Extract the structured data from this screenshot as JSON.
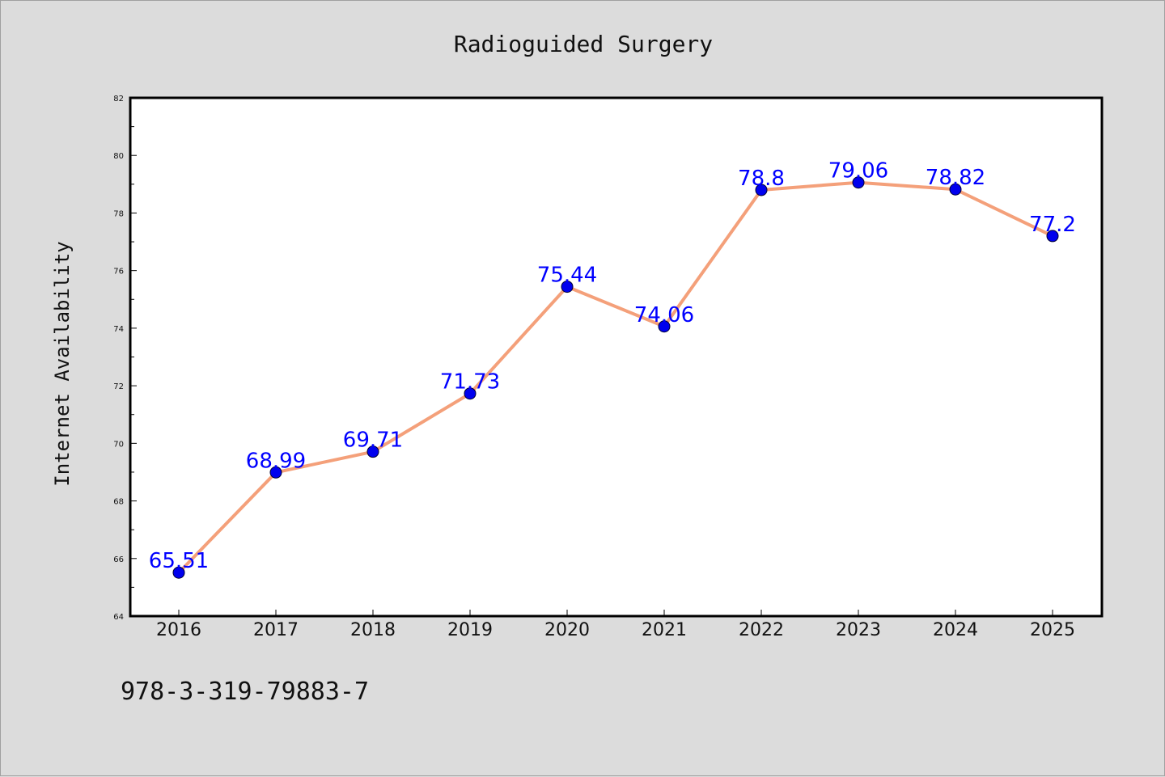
{
  "chart_data": {
    "type": "line",
    "title": "Radioguided Surgery",
    "xlabel": "",
    "ylabel": "Internet Availability",
    "x": [
      "2016",
      "2017",
      "2018",
      "2019",
      "2020",
      "2021",
      "2022",
      "2023",
      "2024",
      "2025"
    ],
    "series": [
      {
        "values": [
          65.51,
          68.99,
          69.71,
          71.73,
          75.44,
          74.06,
          78.8,
          79.06,
          78.82,
          77.2
        ],
        "line_color": "#f4a07a",
        "marker_color": "#0000ee",
        "label_color": "#0000ff"
      }
    ],
    "data_labels": [
      "65.51",
      "68.99",
      "69.71",
      "71.73",
      "75.44",
      "74.06",
      "78.8",
      "79.06",
      "78.82",
      "77.2"
    ],
    "ylim": [
      64,
      82
    ],
    "yticks": [
      "64",
      "66",
      "68",
      "70",
      "72",
      "74",
      "76",
      "78",
      "80",
      "82"
    ],
    "grid": false,
    "legend": "none"
  },
  "footnote": "978-3-319-79883-7"
}
